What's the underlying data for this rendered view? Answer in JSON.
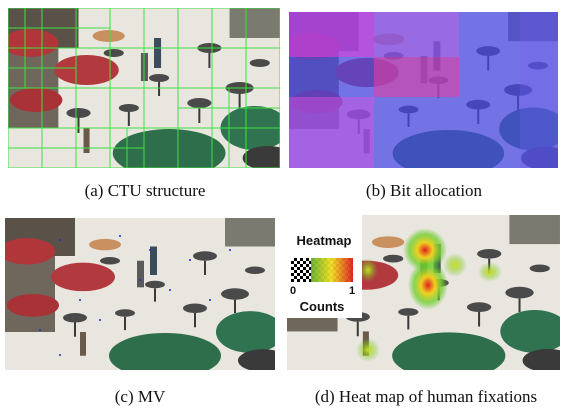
{
  "figure": {
    "panels": [
      {
        "caption": "(a) CTU structure"
      },
      {
        "caption": "(b) Bit allocation"
      },
      {
        "caption": "(c) MV"
      },
      {
        "caption": "(d) Heat map of human fixations"
      }
    ],
    "legend": {
      "title": "Heatmap",
      "min": "0",
      "max": "1",
      "label": "Counts"
    }
  }
}
